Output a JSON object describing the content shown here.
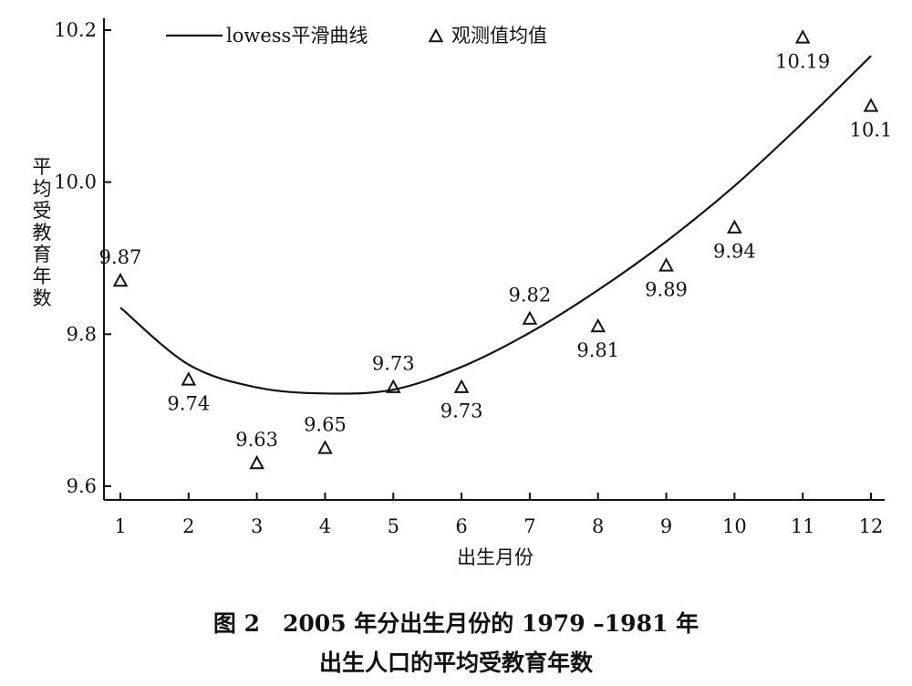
{
  "chart_data": {
    "type": "scatter",
    "title": "",
    "xlabel": "出生月份",
    "ylabel": "平均受教育年数",
    "x_ticks": [
      "1",
      "2",
      "3",
      "4",
      "5",
      "6",
      "7",
      "8",
      "9",
      "10",
      "11",
      "12"
    ],
    "y_ticks": [
      "9.6",
      "9.8",
      "10.0",
      "10.2"
    ],
    "xlim": [
      1,
      12
    ],
    "ylim": [
      9.6,
      10.2
    ],
    "grid": false,
    "legend_position": "top",
    "colors": {
      "ink": "#111111",
      "background": "#ffffff"
    },
    "series": [
      {
        "name": "lowess平滑曲线",
        "kind": "line",
        "x": [
          1,
          2,
          3,
          4,
          5,
          6,
          7,
          8,
          9,
          10,
          11,
          12
        ],
        "y": [
          9.835,
          9.76,
          9.73,
          9.722,
          9.727,
          9.757,
          9.802,
          9.858,
          9.922,
          9.995,
          10.078,
          10.166
        ]
      },
      {
        "name": "观测值均值",
        "kind": "scatter",
        "marker": "triangle-icon",
        "x": [
          1,
          2,
          3,
          4,
          5,
          6,
          7,
          8,
          9,
          10,
          11,
          12
        ],
        "y": [
          9.87,
          9.74,
          9.63,
          9.65,
          9.73,
          9.73,
          9.82,
          9.81,
          9.89,
          9.94,
          10.19,
          10.1
        ],
        "labels": [
          "9.87",
          "9.74",
          "9.63",
          "9.65",
          "9.73",
          "9.73",
          "9.82",
          "9.81",
          "9.89",
          "9.94",
          "10.19",
          "10.1"
        ],
        "label_placement": [
          "above",
          "below",
          "above",
          "above",
          "above",
          "below",
          "above",
          "below",
          "below",
          "below",
          "below",
          "below"
        ]
      }
    ]
  },
  "caption": {
    "line1": "图 2　2005 年分出生月份的 1979 –1981 年",
    "line2": "出生人口的平均受教育年数"
  }
}
